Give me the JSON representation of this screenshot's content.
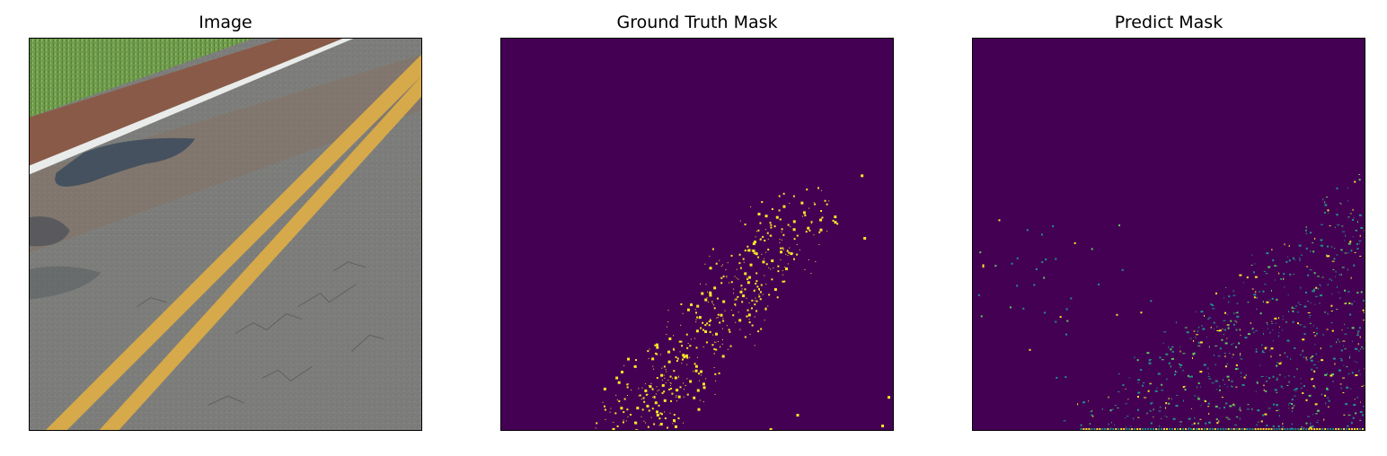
{
  "panels": [
    {
      "title": "Image"
    },
    {
      "title": "Ground Truth Mask"
    },
    {
      "title": "Predict Mask"
    }
  ],
  "colors": {
    "mask_background": "#440154",
    "mask_crack": "#fde725",
    "mask_mid": "#21918c",
    "mask_light": "#5ec962",
    "asphalt": "#7d7e7b",
    "shoulder": "#8a5a48",
    "grass": "#6f9c4b",
    "yellow_line": "#d6a94a",
    "white_line": "#e9ecea",
    "tar_patch": "#3b4a5c"
  },
  "icons": {
    "photo": "road-photo",
    "gt_mask": "ground-truth-mask-raster",
    "pred_mask": "predicted-mask-raster"
  }
}
